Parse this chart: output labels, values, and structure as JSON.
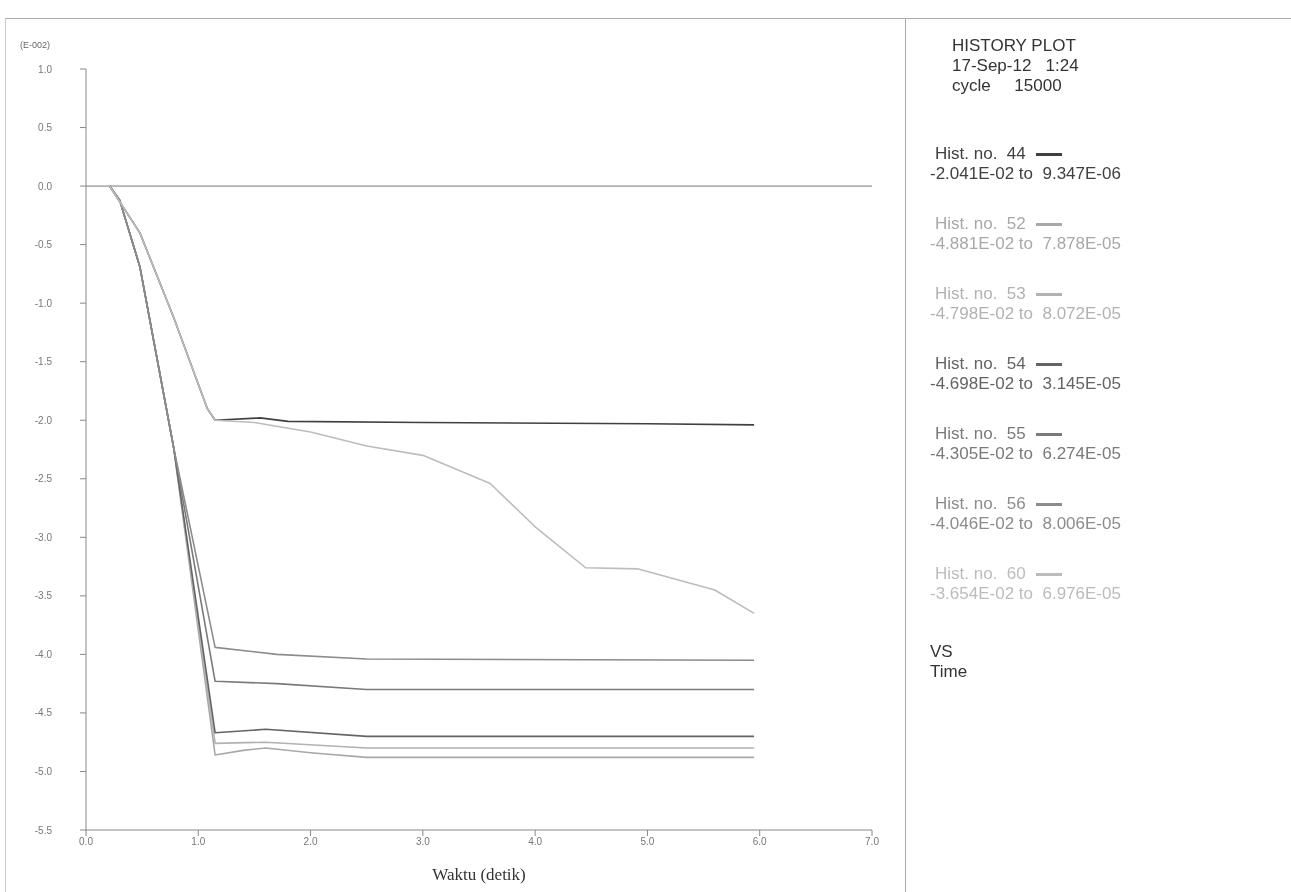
{
  "chart_data": {
    "type": "line",
    "title": "HISTORY PLOT",
    "subtitle": "17-Sep-12   1:24",
    "xlabel": "Waktu (detik)",
    "ylabel": "(E-002)",
    "annotations": [
      "cycle     15000",
      "-2.041E-02 to  9.347E-06",
      "-4.881E-02 to  7.878E-05",
      "-4.798E-02 to  8.072E-05",
      "-4.698E-02 to  3.145E-05",
      "-4.305E-02 to  6.274E-05",
      "-4.046E-02 to  8.006E-05",
      "-3.654E-02 to  6.976E-05",
      "VS",
      "Time"
    ],
    "xlim": [
      0,
      7
    ],
    "xticks": [
      {
        "value": 0,
        "label": "0.0"
      },
      {
        "value": 1,
        "label": "1.0"
      },
      {
        "value": 2,
        "label": "2.0"
      },
      {
        "value": 3,
        "label": "3.0"
      },
      {
        "value": 4,
        "label": "4.0"
      },
      {
        "value": 5,
        "label": "5.0"
      },
      {
        "value": 6,
        "label": "6.0"
      },
      {
        "value": 7,
        "label": "7.0"
      }
    ],
    "ylim": [
      -5.5,
      1
    ],
    "yticks": [
      {
        "value": 1,
        "label": "1.0"
      },
      {
        "value": 0.5,
        "label": "0.5"
      },
      {
        "value": 0,
        "label": "0.0"
      },
      {
        "value": -0.5,
        "label": "-0.5"
      },
      {
        "value": -1,
        "label": "-1.0"
      },
      {
        "value": -1.5,
        "label": "-1.5"
      },
      {
        "value": -2,
        "label": "-2.0"
      },
      {
        "value": -2.5,
        "label": "-2.5"
      },
      {
        "value": -3,
        "label": "-3.0"
      },
      {
        "value": -3.5,
        "label": "-3.5"
      },
      {
        "value": -4,
        "label": "-4.0"
      },
      {
        "value": -4.5,
        "label": "-4.5"
      },
      {
        "value": -5,
        "label": "-5.0"
      },
      {
        "value": -5.5,
        "label": "-5.5"
      }
    ],
    "ref_lines": [
      {
        "axis": "y",
        "value": 0,
        "color": "#777777"
      }
    ],
    "grid": false,
    "legend": "right",
    "marker": "none",
    "line_style": "solid",
    "series": [
      {
        "name": "Hist. no.  44",
        "color": "#404040",
        "x": [
          0.21,
          0.48,
          0.78,
          1.08,
          1.15,
          1.55,
          1.8,
          3.0,
          5.0,
          5.95
        ],
        "values": [
          0,
          -0.4,
          -1.12,
          -1.9,
          -2.0,
          -1.98,
          -2.01,
          -2.02,
          -2.03,
          -2.04
        ]
      },
      {
        "name": "Hist. no.  52",
        "color": "#a8a8a8",
        "x": [
          0.21,
          0.3,
          0.48,
          0.78,
          1.15,
          1.4,
          1.6,
          2.0,
          2.5,
          5.95
        ],
        "values": [
          0,
          -0.12,
          -0.69,
          -2.23,
          -4.86,
          -4.82,
          -4.8,
          -4.84,
          -4.88,
          -4.88
        ]
      },
      {
        "name": "Hist. no.  53",
        "color": "#b2b2b2",
        "x": [
          0.21,
          0.3,
          0.48,
          0.78,
          1.15,
          1.6,
          2.5,
          5.95
        ],
        "values": [
          0,
          -0.12,
          -0.69,
          -2.23,
          -4.76,
          -4.75,
          -4.8,
          -4.8
        ]
      },
      {
        "name": "Hist. no.  54",
        "color": "#646464",
        "x": [
          0.21,
          0.3,
          0.48,
          0.78,
          1.15,
          1.6,
          2.5,
          5.95
        ],
        "values": [
          0,
          -0.12,
          -0.69,
          -2.23,
          -4.67,
          -4.64,
          -4.7,
          -4.7
        ]
      },
      {
        "name": "Hist. no.  55",
        "color": "#7a7a7a",
        "x": [
          0.21,
          0.3,
          0.48,
          0.78,
          1.15,
          1.7,
          2.5,
          5.95
        ],
        "values": [
          0,
          -0.12,
          -0.69,
          -2.23,
          -4.23,
          -4.25,
          -4.3,
          -4.3
        ]
      },
      {
        "name": "Hist. no.  56",
        "color": "#8c8c8c",
        "x": [
          0.21,
          0.3,
          0.48,
          0.78,
          1.15,
          1.7,
          2.5,
          5.95
        ],
        "values": [
          0,
          -0.12,
          -0.69,
          -2.23,
          -3.94,
          -4.0,
          -4.04,
          -4.05
        ]
      },
      {
        "name": "Hist. no.  60",
        "color": "#bcbcbc",
        "x": [
          0.21,
          0.48,
          0.78,
          1.08,
          1.15,
          1.5,
          2.0,
          2.5,
          3.0,
          3.6,
          4.0,
          4.45,
          4.92,
          5.6,
          5.95
        ],
        "values": [
          0,
          -0.4,
          -1.12,
          -1.9,
          -2.0,
          -2.02,
          -2.1,
          -2.22,
          -2.3,
          -2.54,
          -2.91,
          -3.26,
          -3.27,
          -3.45,
          -3.65
        ]
      }
    ]
  }
}
